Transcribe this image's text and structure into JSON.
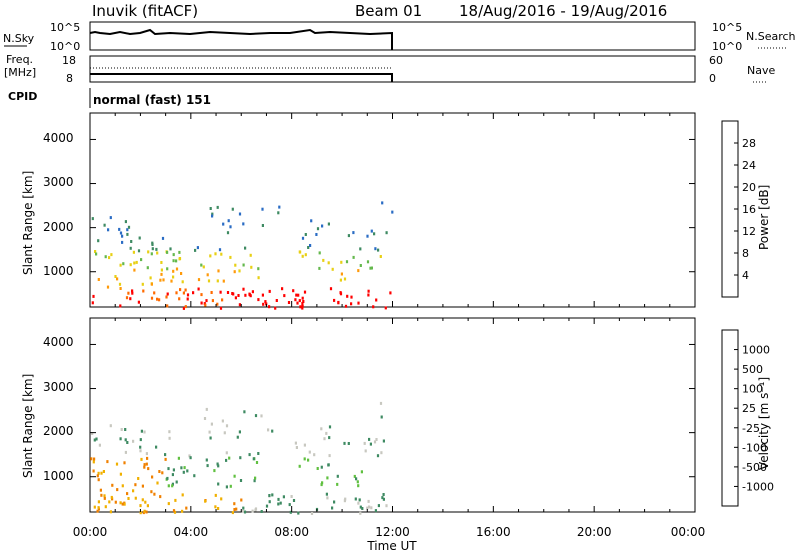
{
  "header": {
    "station": "Inuvik (fitACF)",
    "beam": "Beam 01",
    "date_range": "18/Aug/2016 - 19/Aug/2016"
  },
  "top_panels": {
    "nsky_label": "N.Sky",
    "nsky_ticks": [
      "10^5",
      "10^0"
    ],
    "nsearch_label": "N.Search",
    "nsearch_ticks": [
      "10^5",
      "10^0"
    ],
    "freq_label": "Freq.",
    "freq_unit": "[MHz]",
    "freq_ticks": [
      "18",
      "8"
    ],
    "nave_label": "Nave",
    "nave_ticks": [
      "60",
      "0"
    ],
    "cpid_label": "CPID",
    "cpid_text": "normal (fast) 151"
  },
  "chart_data": [
    {
      "type": "heatmap",
      "name": "power",
      "ylabel": "Slant Range [km]",
      "yticks": [
        "4000",
        "3000",
        "2000",
        "1000"
      ],
      "ylim": [
        200,
        4600
      ],
      "data_xrange_hours": [
        0,
        12
      ],
      "colorbar_label": "Power [dB]",
      "colorbar_ticks": [
        "28",
        "24",
        "20",
        "16",
        "12",
        "8",
        "4"
      ],
      "colors": [
        "#0033ff",
        "#2a6cc4",
        "#3e8a62",
        "#64b84c",
        "#e8d015",
        "#ff9a0a",
        "#ff6a00",
        "#ff0000"
      ]
    },
    {
      "type": "heatmap",
      "name": "velocity",
      "ylabel": "Slant Range [km]",
      "yticks": [
        "4000",
        "3000",
        "2000",
        "1000"
      ],
      "ylim": [
        200,
        4600
      ],
      "data_xrange_hours": [
        0,
        12
      ],
      "colorbar_label": "Velocity [m s⁻¹]",
      "colorbar_ticks": [
        "1000",
        "500",
        "100",
        "25",
        "-25",
        "-100",
        "-500",
        "-1000"
      ],
      "colors": [
        "#1446d8",
        "#2e6cb0",
        "#3e8a62",
        "#60c040",
        "#c8c8c0",
        "#f0b000",
        "#f08000",
        "#f05a00",
        "#ff0000"
      ]
    }
  ],
  "x_axis": {
    "ticks": [
      "00:00",
      "04:00",
      "08:00",
      "12:00",
      "16:00",
      "20:00",
      "00:00"
    ],
    "label": "Time UT"
  }
}
